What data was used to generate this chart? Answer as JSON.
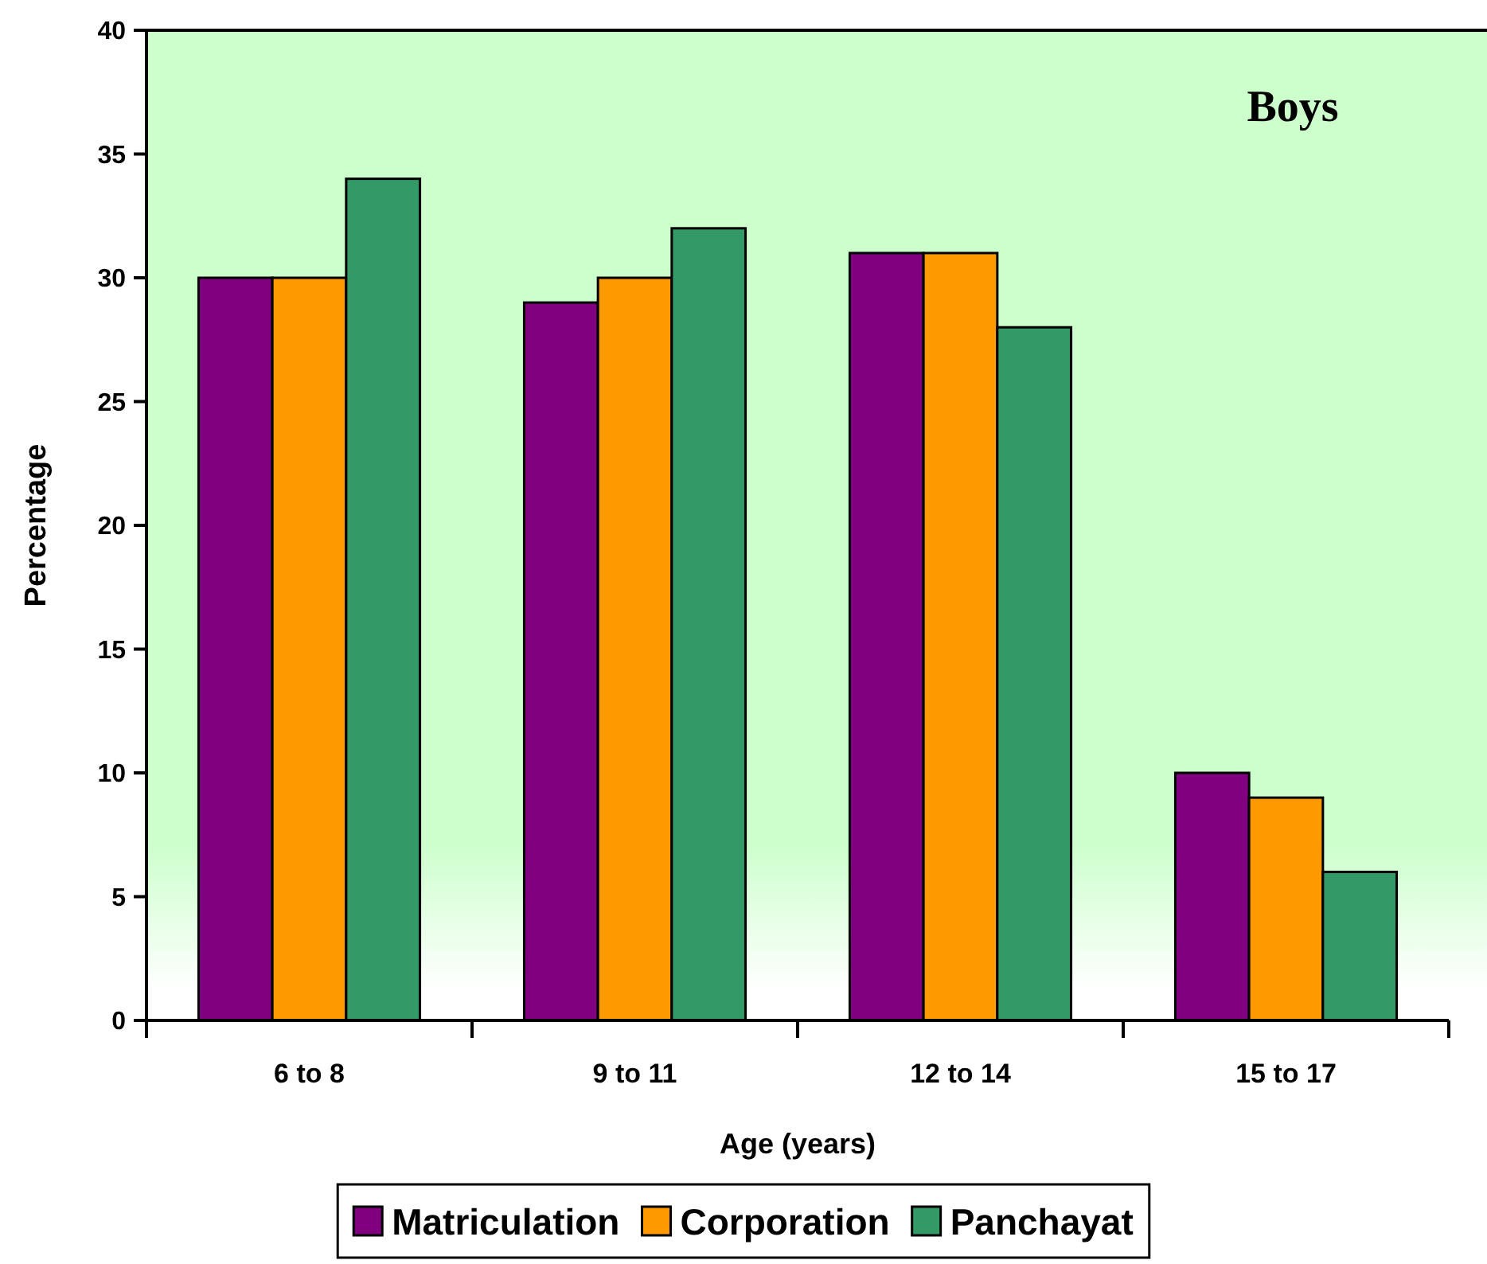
{
  "chart_data": {
    "type": "bar",
    "title": "Boys",
    "xlabel": "Age (years)",
    "ylabel": "Percentage",
    "categories": [
      "6 to 8",
      "9 to 11",
      "12 to 14",
      "15 to 17"
    ],
    "series": [
      {
        "name": "Matriculation",
        "color": "#800080",
        "values": [
          30,
          29,
          31,
          10
        ]
      },
      {
        "name": "Corporation",
        "color": "#ff9900",
        "values": [
          30,
          30,
          31,
          9
        ]
      },
      {
        "name": "Panchayat",
        "color": "#339966",
        "values": [
          34,
          32,
          28,
          6
        ]
      }
    ],
    "ylim": [
      0,
      40
    ],
    "yticks": [
      0,
      5,
      10,
      15,
      20,
      25,
      30,
      35,
      40
    ],
    "legend": "bottom"
  }
}
